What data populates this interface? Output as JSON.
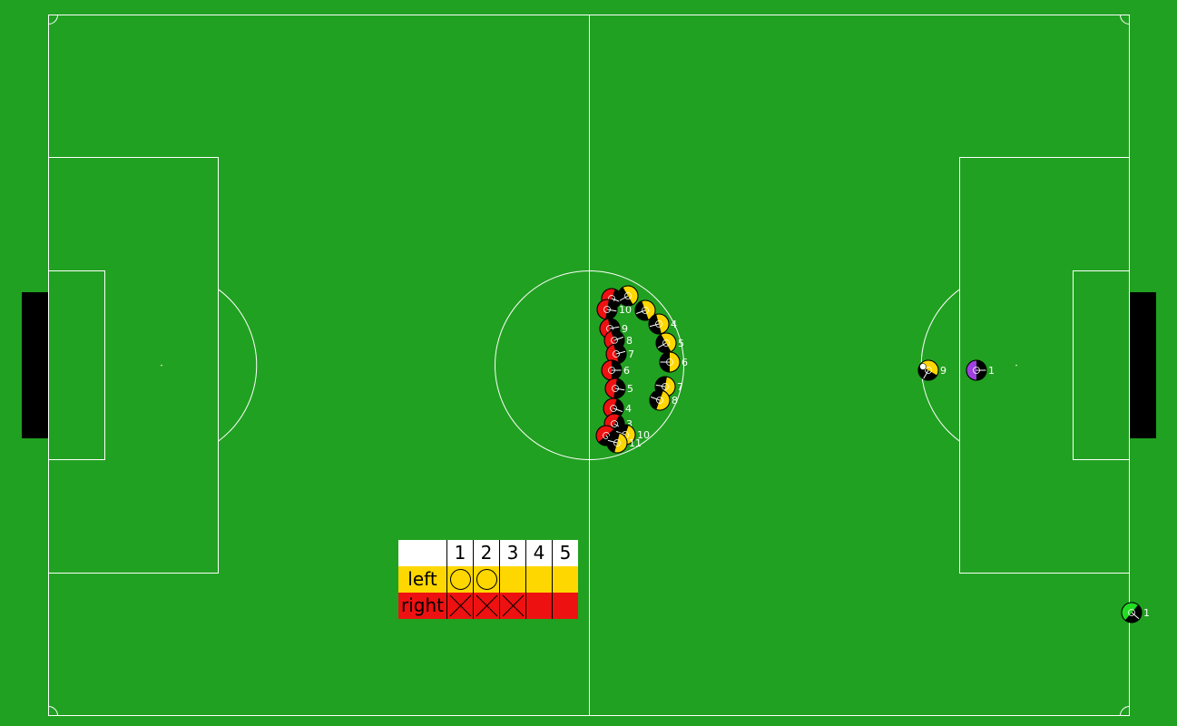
{
  "field": {
    "grass_color": "#21a121",
    "line_color": "#ffffff",
    "goal_color": "#000000"
  },
  "teams": {
    "left_color": "#ffd700",
    "right_color": "#ee1111",
    "body_color": "#000000"
  },
  "players": [
    {
      "team": "right",
      "number": "11",
      "label": "11"
    },
    {
      "team": "right",
      "number": "10",
      "label": "10"
    },
    {
      "team": "right",
      "number": "9",
      "label": "9"
    },
    {
      "team": "right",
      "number": "8",
      "label": "8"
    },
    {
      "team": "right",
      "number": "7",
      "label": "7"
    },
    {
      "team": "right",
      "number": "6",
      "label": "6"
    },
    {
      "team": "right",
      "number": "5",
      "label": "5"
    },
    {
      "team": "right",
      "number": "4",
      "label": "4"
    },
    {
      "team": "right",
      "number": "3",
      "label": "3"
    },
    {
      "team": "right",
      "number": "2",
      "label": ""
    },
    {
      "team": "left",
      "number": "2",
      "label": ""
    },
    {
      "team": "left",
      "number": "3",
      "label": ""
    },
    {
      "team": "left",
      "number": "4",
      "label": "4"
    },
    {
      "team": "left",
      "number": "5",
      "label": "5"
    },
    {
      "team": "left",
      "number": "6",
      "label": "6"
    },
    {
      "team": "left",
      "number": "7",
      "label": "7"
    },
    {
      "team": "left",
      "number": "8",
      "label": "8"
    },
    {
      "team": "left",
      "number": "10",
      "label": "10"
    },
    {
      "team": "left",
      "number": "11",
      "label": "11"
    },
    {
      "team": "left",
      "number": "9",
      "label": "9"
    },
    {
      "team": "goalie",
      "number": "1",
      "label": "1",
      "color": "#a040e0"
    },
    {
      "team": "offfield",
      "number": "1",
      "label": "1",
      "color": "#22dd22"
    }
  ],
  "penalty_table": {
    "header": [
      "1",
      "2",
      "3",
      "4",
      "5"
    ],
    "left": {
      "label": "left",
      "results": [
        "goal",
        "goal",
        "",
        "",
        ""
      ]
    },
    "right": {
      "label": "right",
      "results": [
        "miss",
        "miss",
        "miss",
        "",
        ""
      ]
    }
  }
}
